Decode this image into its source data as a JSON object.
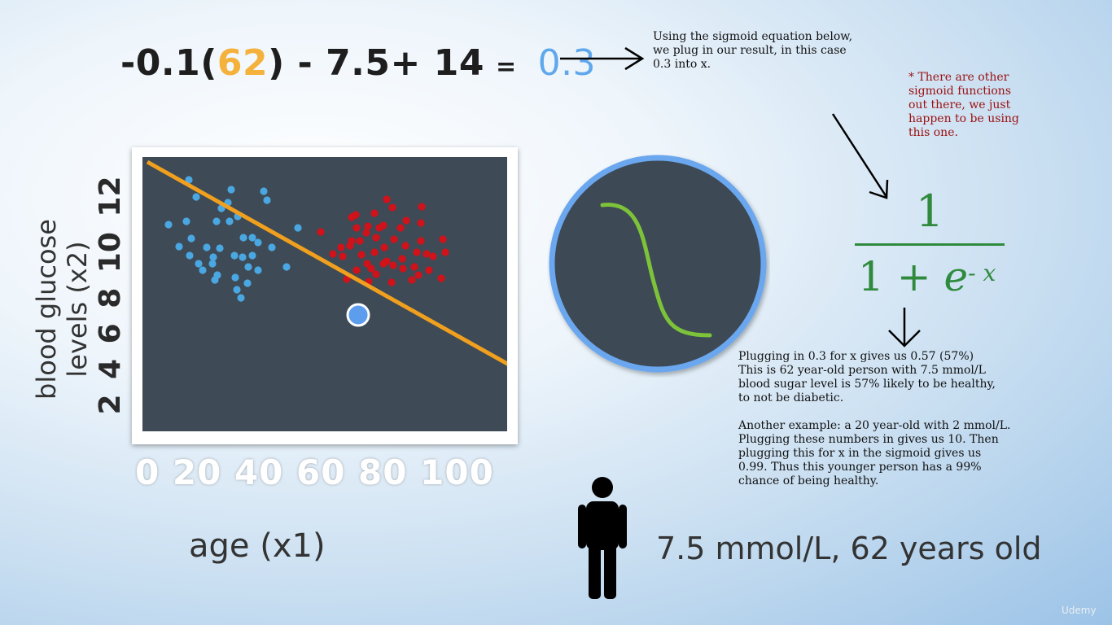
{
  "equation": {
    "part_a": "-0.1(",
    "age_value": "62",
    "part_b": ") - 7.5+ 14",
    "equals": "=",
    "result": "0.3"
  },
  "notes": {
    "sigmoid_intro": "Using the sigmoid equation below,\nwe plug in our result, in this case\n0.3 into x.",
    "other_sigmoids": "* There are other\nsigmoid functions\nout there, we just\nhappen to be using\nthis one.",
    "result_explanation": "Plugging in 0.3 for x gives us 0.57 (57%)\nThis is 62 year-old person with 7.5 mmol/L\nblood sugar level is 57% likely to be healthy,\nto not be diabetic.\n\nAnother example: a 20 year-old with 2 mmol/L.\nPlugging these numbers in gives us 10. Then\nplugging this for x in the sigmoid gives us\n0.99. Thus this younger person has a 99%\nchance of being healthy."
  },
  "plot": {
    "y_axis_label_line1": "blood glucose",
    "y_axis_label_line2": "levels (x2)",
    "y_tick_labels": "2 4 6 8 10 12",
    "x_tick_labels": "0 20 40 60 80 100",
    "x_axis_label": "age (x1)"
  },
  "formula": {
    "numerator": "1",
    "denominator_prefix": "1 + ",
    "base": "e",
    "exponent": "- x"
  },
  "patient_label": "7.5 mmol/L, 62 years old",
  "watermark": "Udemy",
  "colors": {
    "plot_background": "#3e4a55",
    "decision_line": "#f0a01e",
    "healthy_points": "#4aa7e2",
    "diabetic_points": "#d0121b",
    "query_point": "#5c9ded",
    "sigmoid_curve": "#7dc33a",
    "sigmoid_ring": "#6aa7ee",
    "formula": "#2f8a3e",
    "note_red": "#9b0f0f",
    "age_highlight": "#f4b23c",
    "result_highlight": "#5fa8ec"
  },
  "icons": [
    "arrow-right-icon",
    "arrow-diagonal-icon",
    "arrow-down-icon",
    "sigmoid-icon",
    "person-icon"
  ]
}
